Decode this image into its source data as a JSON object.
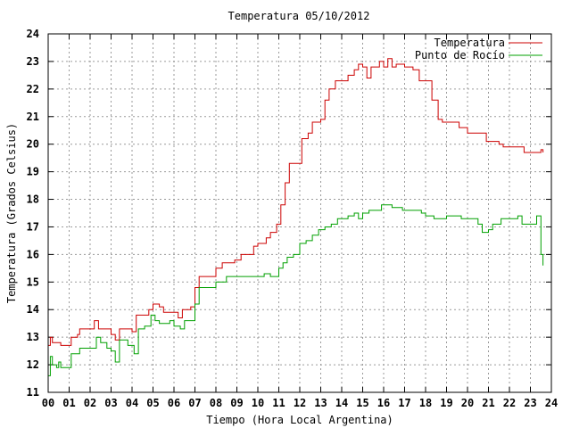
{
  "chart_data": {
    "type": "line",
    "title": "Temperatura 05/10/2012",
    "xlabel": "Tiempo (Hora Local Argentina)",
    "ylabel": "Temperatura (Grados Celsius)",
    "xlim": [
      0,
      24
    ],
    "ylim": [
      11,
      24
    ],
    "xticks": [
      "00",
      "01",
      "02",
      "03",
      "04",
      "05",
      "06",
      "07",
      "08",
      "09",
      "10",
      "11",
      "12",
      "13",
      "14",
      "15",
      "16",
      "17",
      "18",
      "19",
      "20",
      "21",
      "22",
      "23",
      "24"
    ],
    "yticks": [
      "11",
      "12",
      "13",
      "14",
      "15",
      "16",
      "17",
      "18",
      "19",
      "20",
      "21",
      "22",
      "23",
      "24"
    ],
    "grid": true,
    "legend_position": "top-right",
    "series": [
      {
        "name": "Temperatura",
        "color": "#cc0000",
        "points": [
          [
            0.0,
            12.7
          ],
          [
            0.1,
            13.0
          ],
          [
            0.2,
            12.8
          ],
          [
            0.5,
            12.8
          ],
          [
            0.6,
            12.7
          ],
          [
            1.0,
            12.7
          ],
          [
            1.1,
            13.0
          ],
          [
            1.4,
            13.1
          ],
          [
            1.5,
            13.3
          ],
          [
            2.0,
            13.3
          ],
          [
            2.2,
            13.6
          ],
          [
            2.4,
            13.3
          ],
          [
            2.8,
            13.3
          ],
          [
            3.0,
            13.1
          ],
          [
            3.2,
            12.9
          ],
          [
            3.4,
            13.3
          ],
          [
            3.8,
            13.3
          ],
          [
            4.0,
            13.2
          ],
          [
            4.2,
            13.8
          ],
          [
            4.6,
            13.8
          ],
          [
            4.8,
            14.0
          ],
          [
            5.0,
            14.2
          ],
          [
            5.3,
            14.1
          ],
          [
            5.5,
            13.9
          ],
          [
            6.0,
            13.9
          ],
          [
            6.2,
            13.7
          ],
          [
            6.4,
            14.0
          ],
          [
            6.8,
            14.1
          ],
          [
            7.0,
            14.8
          ],
          [
            7.2,
            15.2
          ],
          [
            7.8,
            15.2
          ],
          [
            8.0,
            15.5
          ],
          [
            8.3,
            15.7
          ],
          [
            8.7,
            15.7
          ],
          [
            8.9,
            15.8
          ],
          [
            9.2,
            16.0
          ],
          [
            9.6,
            16.0
          ],
          [
            9.8,
            16.3
          ],
          [
            10.0,
            16.4
          ],
          [
            10.4,
            16.6
          ],
          [
            10.6,
            16.8
          ],
          [
            10.9,
            17.1
          ],
          [
            11.1,
            17.8
          ],
          [
            11.3,
            18.6
          ],
          [
            11.5,
            19.3
          ],
          [
            11.9,
            19.3
          ],
          [
            12.1,
            20.2
          ],
          [
            12.4,
            20.4
          ],
          [
            12.6,
            20.8
          ],
          [
            13.0,
            20.9
          ],
          [
            13.2,
            21.6
          ],
          [
            13.4,
            22.0
          ],
          [
            13.7,
            22.3
          ],
          [
            14.1,
            22.3
          ],
          [
            14.3,
            22.5
          ],
          [
            14.6,
            22.7
          ],
          [
            14.8,
            22.9
          ],
          [
            15.0,
            22.8
          ],
          [
            15.2,
            22.4
          ],
          [
            15.4,
            22.8
          ],
          [
            15.8,
            23.0
          ],
          [
            16.0,
            22.8
          ],
          [
            16.2,
            23.1
          ],
          [
            16.4,
            22.8
          ],
          [
            16.6,
            22.9
          ],
          [
            17.0,
            22.8
          ],
          [
            17.4,
            22.7
          ],
          [
            17.7,
            22.3
          ],
          [
            18.0,
            22.3
          ],
          [
            18.3,
            21.6
          ],
          [
            18.6,
            20.9
          ],
          [
            18.8,
            20.8
          ],
          [
            19.4,
            20.8
          ],
          [
            19.6,
            20.6
          ],
          [
            20.0,
            20.4
          ],
          [
            20.7,
            20.4
          ],
          [
            20.9,
            20.1
          ],
          [
            21.5,
            20.0
          ],
          [
            21.7,
            19.9
          ],
          [
            22.5,
            19.9
          ],
          [
            22.7,
            19.7
          ],
          [
            23.3,
            19.7
          ],
          [
            23.5,
            19.8
          ],
          [
            23.6,
            19.7
          ]
        ]
      },
      {
        "name": "Punto de Rocío",
        "color": "#00a000",
        "points": [
          [
            0.0,
            11.6
          ],
          [
            0.1,
            12.3
          ],
          [
            0.2,
            12.0
          ],
          [
            0.4,
            11.9
          ],
          [
            0.5,
            12.1
          ],
          [
            0.6,
            11.9
          ],
          [
            1.0,
            11.9
          ],
          [
            1.1,
            12.4
          ],
          [
            1.5,
            12.6
          ],
          [
            2.0,
            12.6
          ],
          [
            2.3,
            13.0
          ],
          [
            2.5,
            12.8
          ],
          [
            2.8,
            12.6
          ],
          [
            3.0,
            12.5
          ],
          [
            3.2,
            12.1
          ],
          [
            3.4,
            12.9
          ],
          [
            3.8,
            12.7
          ],
          [
            4.1,
            12.4
          ],
          [
            4.3,
            13.3
          ],
          [
            4.6,
            13.4
          ],
          [
            4.9,
            13.8
          ],
          [
            5.1,
            13.6
          ],
          [
            5.3,
            13.5
          ],
          [
            5.8,
            13.6
          ],
          [
            6.0,
            13.4
          ],
          [
            6.3,
            13.3
          ],
          [
            6.5,
            13.6
          ],
          [
            6.8,
            13.6
          ],
          [
            7.0,
            14.2
          ],
          [
            7.2,
            14.8
          ],
          [
            7.8,
            14.8
          ],
          [
            8.0,
            15.0
          ],
          [
            8.5,
            15.2
          ],
          [
            9.0,
            15.2
          ],
          [
            9.5,
            15.2
          ],
          [
            10.0,
            15.2
          ],
          [
            10.3,
            15.3
          ],
          [
            10.6,
            15.2
          ],
          [
            11.0,
            15.5
          ],
          [
            11.2,
            15.7
          ],
          [
            11.4,
            15.9
          ],
          [
            11.7,
            16.0
          ],
          [
            12.0,
            16.4
          ],
          [
            12.3,
            16.5
          ],
          [
            12.6,
            16.7
          ],
          [
            12.9,
            16.9
          ],
          [
            13.2,
            17.0
          ],
          [
            13.5,
            17.1
          ],
          [
            13.8,
            17.3
          ],
          [
            14.0,
            17.3
          ],
          [
            14.3,
            17.4
          ],
          [
            14.6,
            17.5
          ],
          [
            14.8,
            17.3
          ],
          [
            15.0,
            17.5
          ],
          [
            15.3,
            17.6
          ],
          [
            15.6,
            17.6
          ],
          [
            15.9,
            17.8
          ],
          [
            16.2,
            17.8
          ],
          [
            16.4,
            17.7
          ],
          [
            16.6,
            17.7
          ],
          [
            16.9,
            17.6
          ],
          [
            17.2,
            17.6
          ],
          [
            17.5,
            17.6
          ],
          [
            17.8,
            17.5
          ],
          [
            18.0,
            17.4
          ],
          [
            18.4,
            17.3
          ],
          [
            18.8,
            17.3
          ],
          [
            19.0,
            17.4
          ],
          [
            19.5,
            17.4
          ],
          [
            19.7,
            17.3
          ],
          [
            20.0,
            17.3
          ],
          [
            20.5,
            17.1
          ],
          [
            20.7,
            16.8
          ],
          [
            21.0,
            16.9
          ],
          [
            21.2,
            17.1
          ],
          [
            21.6,
            17.3
          ],
          [
            22.0,
            17.3
          ],
          [
            22.4,
            17.4
          ],
          [
            22.6,
            17.1
          ],
          [
            23.1,
            17.1
          ],
          [
            23.3,
            17.4
          ],
          [
            23.4,
            17.4
          ],
          [
            23.5,
            16.0
          ],
          [
            23.6,
            15.6
          ]
        ]
      }
    ]
  }
}
